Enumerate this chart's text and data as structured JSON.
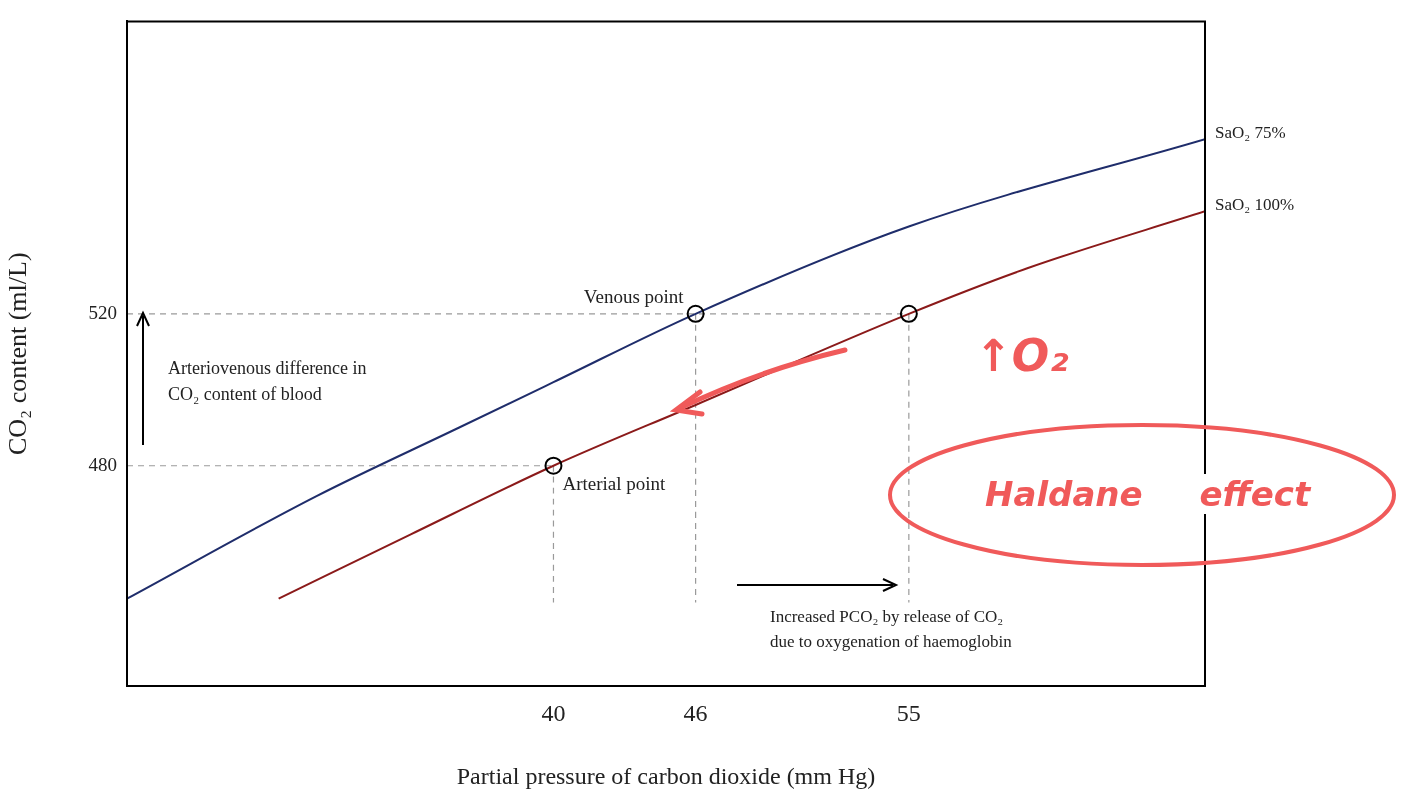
{
  "chart_data": {
    "type": "line",
    "xlabel": "Partial pressure of carbon dioxide (mm Hg)",
    "ylabel": "CO₂ content (ml/L)",
    "xlim": [
      22,
      67.5
    ],
    "ylim": [
      422,
      597
    ],
    "xticks": [
      40,
      46,
      55
    ],
    "yticks": [
      480,
      520
    ],
    "grid": false,
    "legend": false,
    "marker": "none",
    "line_style": "solid",
    "series": [
      {
        "name": "SaO₂ 75%",
        "color": "#1f2d6b",
        "x": [
          22,
          30,
          36,
          40,
          46,
          55,
          67.5
        ],
        "values": [
          445,
          472,
          490,
          502,
          520,
          543,
          566
        ]
      },
      {
        "name": "SaO₂ 100%",
        "color": "#8b1a1a",
        "x": [
          28.4,
          34,
          40,
          46,
          55,
          60,
          67.5
        ],
        "values": [
          445,
          462,
          480,
          496,
          520,
          532,
          547
        ]
      },
      {
        "color": "#9a9a9a",
        "line_style": "dashed",
        "x": [
          22,
          55
        ],
        "values": [
          520,
          520
        ]
      },
      {
        "color": "#9a9a9a",
        "line_style": "dashed",
        "x": [
          22,
          40
        ],
        "values": [
          480,
          480
        ]
      },
      {
        "color": "#9a9a9a",
        "line_style": "dashed",
        "x": [
          40,
          40
        ],
        "values": [
          480,
          444
        ]
      },
      {
        "color": "#9a9a9a",
        "line_style": "dashed",
        "x": [
          46,
          46
        ],
        "values": [
          520,
          444
        ]
      },
      {
        "color": "#9a9a9a",
        "line_style": "dashed",
        "x": [
          55,
          55
        ],
        "values": [
          520,
          444
        ]
      },
      {
        "type": "scatter",
        "marker": "circle",
        "color": "#000000",
        "x": [
          40,
          46,
          55
        ],
        "values": [
          480,
          520,
          520
        ]
      }
    ],
    "annotations": [
      {
        "text": "Venous point",
        "x": 46,
        "y": 520
      },
      {
        "text": "Arterial point",
        "x": 40,
        "y": 480
      },
      "Arteriovenous difference in\nCO₂ content of blood",
      "Increased PCO₂ by release of CO₂\ndue to oxygenation of haemoglobin",
      "↑O₂",
      "Haldane effect"
    ]
  }
}
